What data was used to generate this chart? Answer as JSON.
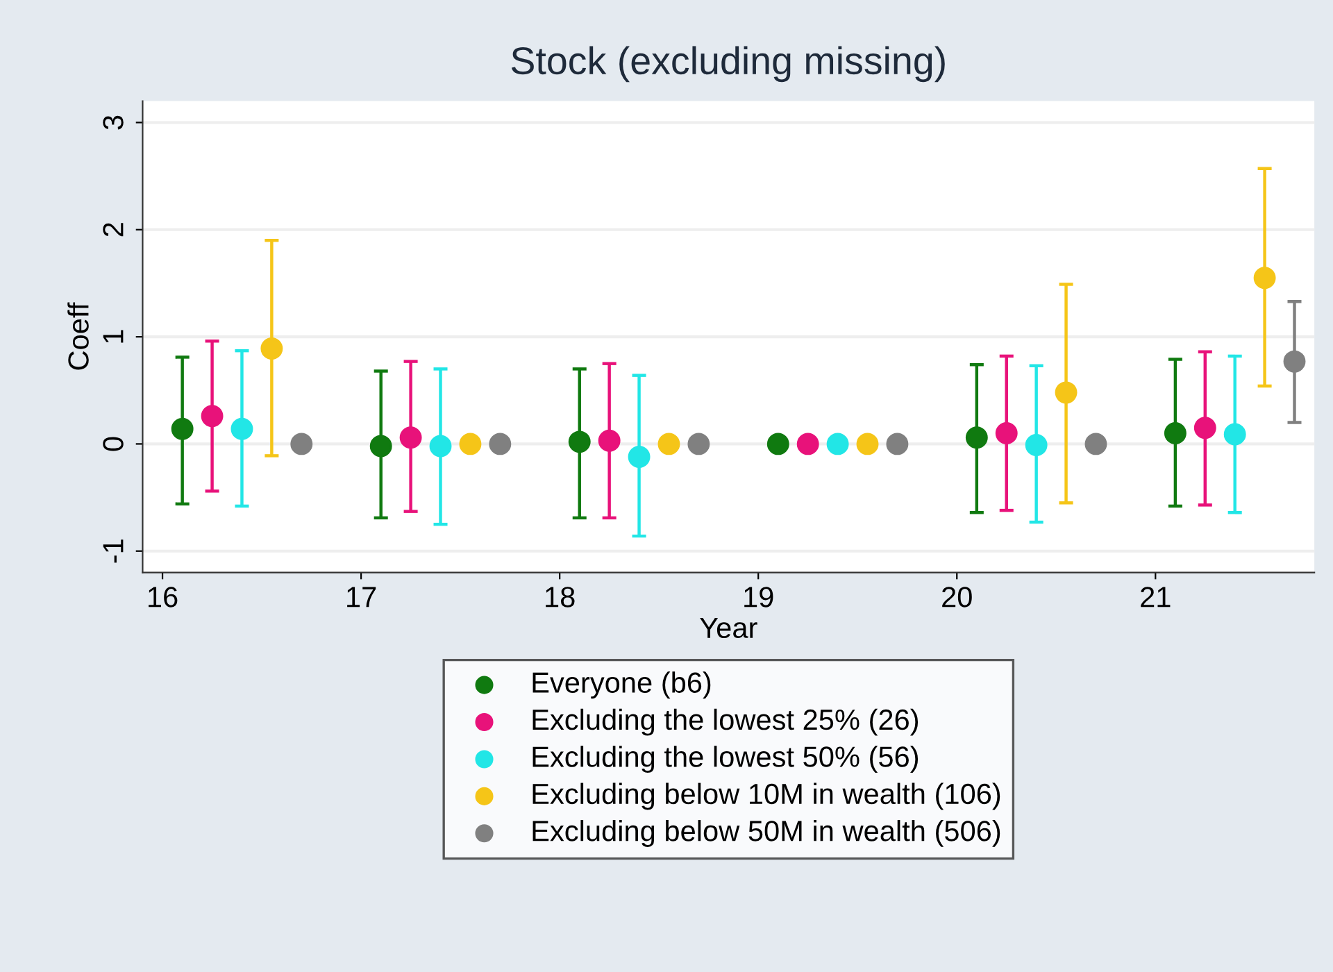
{
  "chart_data": {
    "type": "scatter",
    "title": "Stock (excluding missing)",
    "xlabel": "Year",
    "ylabel": "Coeff",
    "xlim": [
      15.9,
      21.8
    ],
    "xticks": [
      16,
      17,
      18,
      19,
      20,
      21
    ],
    "ylim": [
      -1.2,
      3.2
    ],
    "yticks": [
      -1,
      0,
      1,
      2,
      3
    ],
    "grid": "y",
    "legend": "bottom",
    "marker": "circle",
    "series": [
      {
        "name": "Everyone (b6)",
        "color": "#107a10",
        "x": [
          16.1,
          17.1,
          18.1,
          19.1,
          20.1,
          21.1
        ],
        "values": [
          0.14,
          -0.02,
          0.02,
          0,
          0.06,
          0.1
        ],
        "errors": [
          [
            -0.56,
            0.81
          ],
          [
            -0.69,
            0.68
          ],
          [
            -0.69,
            0.7
          ],
          null,
          [
            -0.64,
            0.74
          ],
          [
            -0.58,
            0.79
          ]
        ]
      },
      {
        "name": "Excluding the lowest 25% (26)",
        "color": "#e8127a",
        "x": [
          16.25,
          17.25,
          18.25,
          19.25,
          20.25,
          21.25
        ],
        "values": [
          0.26,
          0.06,
          0.03,
          0,
          0.1,
          0.15
        ],
        "errors": [
          [
            -0.44,
            0.96
          ],
          [
            -0.63,
            0.77
          ],
          [
            -0.69,
            0.75
          ],
          null,
          [
            -0.62,
            0.82
          ],
          [
            -0.57,
            0.86
          ]
        ]
      },
      {
        "name": "Excluding the lowest 50% (56)",
        "color": "#22e6e6",
        "x": [
          16.4,
          17.4,
          18.4,
          19.4,
          20.4,
          21.4
        ],
        "values": [
          0.14,
          -0.02,
          -0.12,
          0,
          -0.01,
          0.09
        ],
        "errors": [
          [
            -0.58,
            0.87
          ],
          [
            -0.75,
            0.7
          ],
          [
            -0.86,
            0.64
          ],
          null,
          [
            -0.73,
            0.73
          ],
          [
            -0.64,
            0.82
          ]
        ]
      },
      {
        "name": "Excluding below 10M in wealth (106)",
        "color": "#f5c518",
        "x": [
          16.55,
          17.55,
          18.55,
          19.55,
          20.55,
          21.55
        ],
        "values": [
          0.89,
          0,
          0,
          0,
          0.48,
          1.55
        ],
        "errors": [
          [
            -0.11,
            1.9
          ],
          null,
          null,
          null,
          [
            -0.55,
            1.49
          ],
          [
            0.54,
            2.57
          ]
        ]
      },
      {
        "name": "Excluding below 50M in wealth (506)",
        "color": "#808080",
        "x": [
          16.7,
          17.7,
          18.7,
          19.7,
          20.7,
          21.7
        ],
        "values": [
          0,
          0,
          0,
          0,
          0,
          0.77
        ],
        "errors": [
          null,
          null,
          null,
          null,
          null,
          [
            0.2,
            1.33
          ]
        ]
      }
    ]
  }
}
